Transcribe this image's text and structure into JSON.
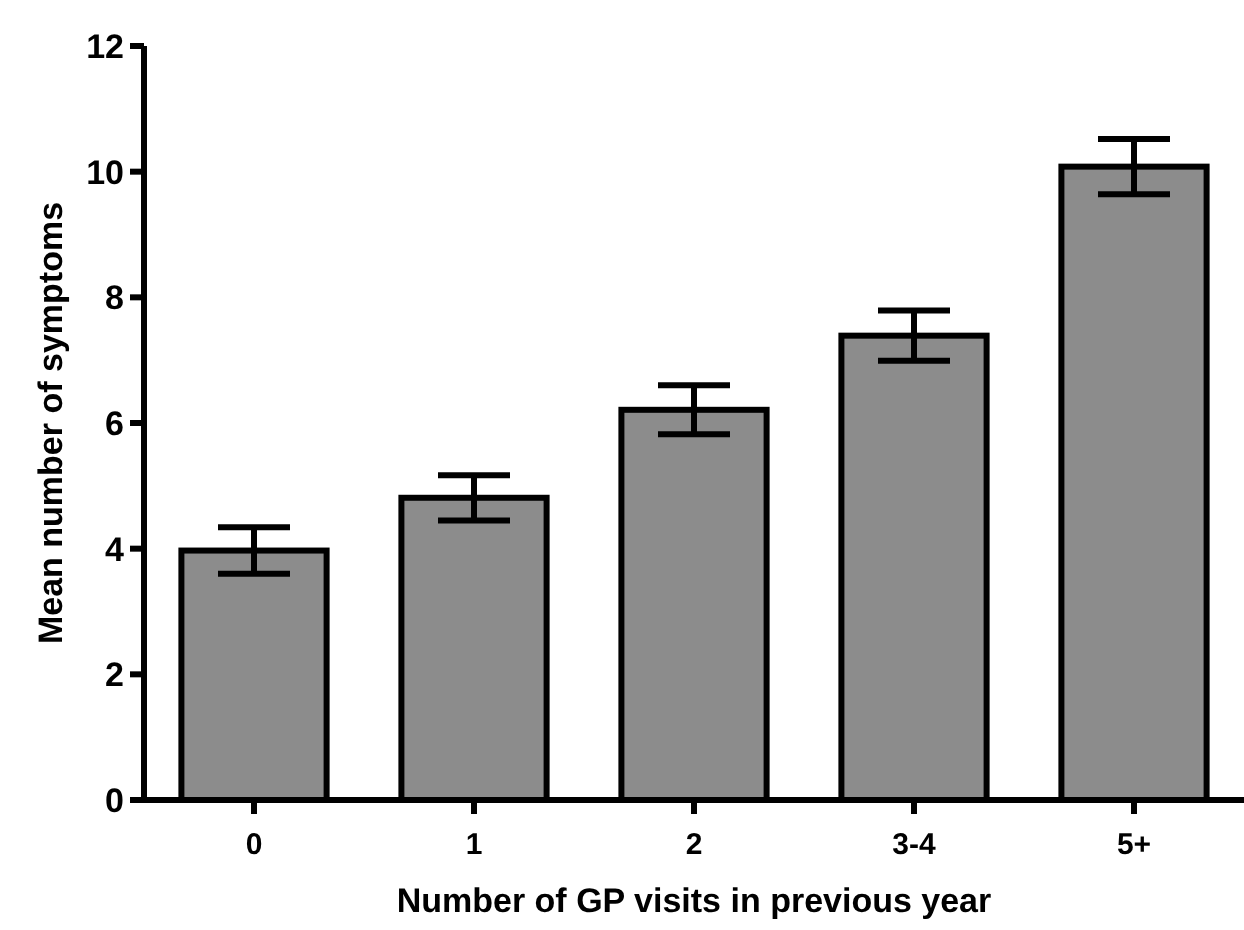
{
  "chart_data": {
    "type": "bar",
    "xlabel": "Number of GP visits in previous year",
    "ylabel": "Mean number of symptoms",
    "categories": [
      "0",
      "1",
      "2",
      "3-4",
      "5+"
    ],
    "values": [
      3.97,
      4.81,
      6.21,
      7.39,
      10.08
    ],
    "errors": [
      0.37,
      0.36,
      0.39,
      0.4,
      0.44
    ],
    "color": "#8c8c8c",
    "ylim": [
      0,
      12
    ],
    "yticks": [
      0,
      2,
      4,
      6,
      8,
      10,
      12
    ],
    "grid": false
  }
}
